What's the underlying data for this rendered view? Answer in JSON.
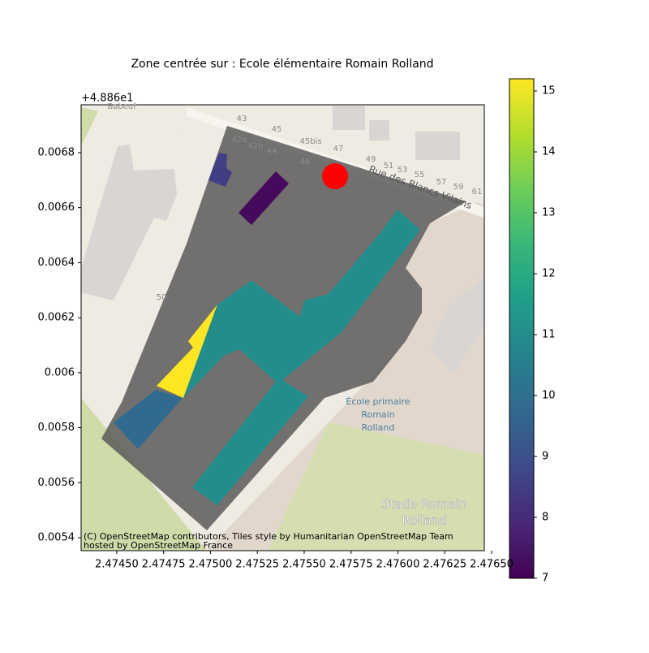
{
  "chart_data": {
    "type": "choropleth",
    "title": "Zone centrée sur : Ecole élémentaire Romain Rolland",
    "y_offset_label": "+4.886e1",
    "xlim": [
      2.47431,
      2.476461
    ],
    "ylim": [
      0.005353,
      0.006974
    ],
    "xticks": [
      {
        "value": 2.4745,
        "label": "2.47450"
      },
      {
        "value": 2.47475,
        "label": "2.47475"
      },
      {
        "value": 2.475,
        "label": "2.47500"
      },
      {
        "value": 2.47525,
        "label": "2.47525"
      },
      {
        "value": 2.4755,
        "label": "2.47550"
      },
      {
        "value": 2.47575,
        "label": "2.47575"
      },
      {
        "value": 2.476,
        "label": "2.47600"
      },
      {
        "value": 2.47625,
        "label": "2.47625"
      },
      {
        "value": 2.4765,
        "label": "2.47650"
      }
    ],
    "yticks": [
      0.0054,
      0.0056,
      0.0058,
      0.006,
      0.0062,
      0.0064,
      0.0066,
      0.0068
    ],
    "colormap": "viridis",
    "clim": [
      7,
      15.2
    ],
    "cticks": [
      7,
      8,
      9,
      10,
      11,
      12,
      13,
      14,
      15
    ],
    "values": [
      7.2,
      8.5,
      15.2,
      9.8,
      11
    ],
    "attribution": [
      "(C) OpenStreetMap contributors, Tiles style by Humanitarian OpenStreetMap Team",
      "hosted by OpenStreetMap France"
    ],
    "map_labels": [
      "Babeuf",
      "43",
      "45",
      "45bis",
      "47",
      "49",
      "51",
      "53",
      "55",
      "57",
      "59",
      "61",
      "42a",
      "42b",
      "44",
      "46",
      "50",
      "Rue des Blancs Vilains",
      "École primaire",
      "Romain",
      "Rolland",
      "Stade Romain",
      "Rolland"
    ]
  }
}
